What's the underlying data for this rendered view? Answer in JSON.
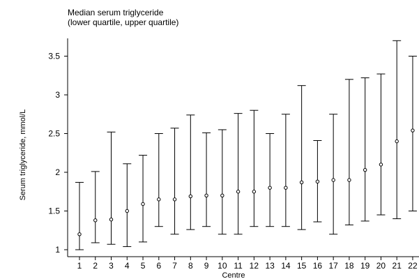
{
  "chart_data": {
    "type": "scatter",
    "title_line1": "Median serum triglyceride",
    "title_line2": "(lower quartile, upper quartile)",
    "xlabel": "Centre",
    "ylabel": "Serum triglyceride, mmol/L",
    "x": [
      1,
      2,
      3,
      4,
      5,
      6,
      7,
      8,
      9,
      10,
      11,
      12,
      13,
      14,
      15,
      16,
      17,
      18,
      19,
      20,
      21,
      22
    ],
    "median": [
      1.2,
      1.38,
      1.39,
      1.5,
      1.59,
      1.65,
      1.65,
      1.69,
      1.7,
      1.7,
      1.75,
      1.75,
      1.8,
      1.8,
      1.87,
      1.88,
      1.9,
      1.9,
      2.03,
      2.1,
      2.4,
      2.54
    ],
    "lower": [
      1.0,
      1.09,
      1.07,
      1.04,
      1.1,
      1.3,
      1.2,
      1.26,
      1.3,
      1.2,
      1.2,
      1.3,
      1.3,
      1.3,
      1.26,
      1.36,
      1.2,
      1.32,
      1.37,
      1.45,
      1.4,
      1.5
    ],
    "upper": [
      1.87,
      2.01,
      2.52,
      2.11,
      2.22,
      2.5,
      2.57,
      2.74,
      2.51,
      2.55,
      2.76,
      2.8,
      2.5,
      2.75,
      3.12,
      2.41,
      2.75,
      3.2,
      3.22,
      3.27,
      3.7,
      3.5
    ],
    "y_ticks": [
      "1",
      "1.5",
      "2",
      "2.5",
      "3",
      "3.5"
    ],
    "y_tick_values": [
      1,
      1.5,
      2,
      2.5,
      3,
      3.5
    ],
    "x_ticks": [
      "1",
      "2",
      "3",
      "4",
      "5",
      "6",
      "7",
      "8",
      "9",
      "10",
      "11",
      "12",
      "13",
      "14",
      "15",
      "16",
      "17",
      "18",
      "19",
      "20",
      "21",
      "22"
    ],
    "ylim": [
      0.97,
      3.78
    ],
    "xlim": [
      0.4,
      22.4
    ],
    "grid": false
  }
}
